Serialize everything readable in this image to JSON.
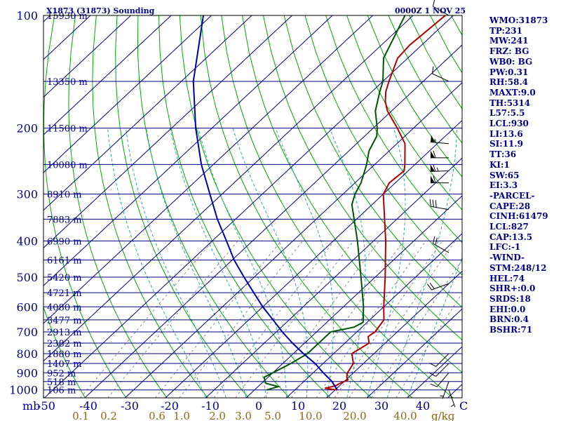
{
  "title": "X1873 (31873) Sounding",
  "datetime": "0000Z  1 NOV 25",
  "chart_data": {
    "type": "line",
    "title": "X1873 (31873) Sounding",
    "x_label_left": "mb",
    "x_unit_right": "C",
    "mixing_ratio_unit": "g/kg",
    "pressure_ticks": [
      100,
      200,
      300,
      400,
      500,
      600,
      700,
      800,
      900,
      1000
    ],
    "temperature_ticks": [
      -50,
      -40,
      -30,
      -20,
      -10,
      0,
      10,
      20,
      30,
      40
    ],
    "mixing_ratio_labels": [
      "0.1",
      "0.2",
      "0.6",
      "1.0",
      "2.0",
      "3.0",
      "5.0",
      "10.0",
      "20.0",
      "40.0"
    ],
    "height_labels": [
      {
        "p": 100,
        "text": "15930 m"
      },
      {
        "p": 150,
        "text": "13350 m"
      },
      {
        "p": 200,
        "text": "11500 m"
      },
      {
        "p": 250,
        "text": "10080 m"
      },
      {
        "p": 300,
        "text": "8910 m"
      },
      {
        "p": 350,
        "text": "7883 m"
      },
      {
        "p": 400,
        "text": "6990 m"
      },
      {
        "p": 450,
        "text": "6161 m"
      },
      {
        "p": 500,
        "text": "5420 m"
      },
      {
        "p": 550,
        "text": "4721 m"
      },
      {
        "p": 600,
        "text": "4080 m"
      },
      {
        "p": 650,
        "text": "3477 m"
      },
      {
        "p": 700,
        "text": "2913 m"
      },
      {
        "p": 750,
        "text": "2382 m"
      },
      {
        "p": 800,
        "text": "1880 m"
      },
      {
        "p": 850,
        "text": "1407 m"
      },
      {
        "p": 900,
        "text": "952 m"
      },
      {
        "p": 950,
        "text": "518 m"
      },
      {
        "p": 1000,
        "text": "106 m"
      }
    ],
    "series": [
      {
        "color": "#b00000",
        "points": [
          [
            1000,
            20.5
          ],
          [
            990,
            17.0
          ],
          [
            975,
            19.0
          ],
          [
            960,
            19.5
          ],
          [
            950,
            20.0
          ],
          [
            940,
            20.5
          ],
          [
            925,
            19.5
          ],
          [
            900,
            18.5
          ],
          [
            850,
            17.5
          ],
          [
            800,
            14.5
          ],
          [
            750,
            16.0
          ],
          [
            720,
            14.0
          ],
          [
            700,
            14.5
          ],
          [
            650,
            13.5
          ],
          [
            600,
            10.0
          ],
          [
            500,
            2.5
          ],
          [
            400,
            -7.0
          ],
          [
            300,
            -20.0
          ],
          [
            280,
            -21.5
          ],
          [
            260,
            -21.0
          ],
          [
            250,
            -22.5
          ],
          [
            220,
            -28.0
          ],
          [
            200,
            -34.0
          ],
          [
            180,
            -41.0
          ],
          [
            170,
            -44.0
          ],
          [
            160,
            -46.5
          ],
          [
            150,
            -48.5
          ],
          [
            130,
            -52.5
          ],
          [
            120,
            -53.0
          ],
          [
            100,
            -52.0
          ]
        ]
      },
      {
        "color": "#005500",
        "points": [
          [
            1000,
            3.0
          ],
          [
            980,
            5.0
          ],
          [
            960,
            1.0
          ],
          [
            925,
            -1.0
          ],
          [
            900,
            0.0
          ],
          [
            850,
            2.0
          ],
          [
            800,
            3.5
          ],
          [
            700,
            3.5
          ],
          [
            680,
            8.0
          ],
          [
            660,
            9.0
          ],
          [
            600,
            5.0
          ],
          [
            500,
            -3.5
          ],
          [
            400,
            -14.0
          ],
          [
            320,
            -25.0
          ],
          [
            300,
            -27.0
          ],
          [
            280,
            -28.5
          ],
          [
            250,
            -32.0
          ],
          [
            230,
            -35.0
          ],
          [
            210,
            -37.0
          ],
          [
            200,
            -39.0
          ],
          [
            180,
            -44.0
          ],
          [
            160,
            -48.0
          ],
          [
            150,
            -50.0
          ],
          [
            130,
            -56.0
          ],
          [
            100,
            -62.0
          ]
        ]
      },
      {
        "color": "#0000aa",
        "points": [
          [
            1000,
            20.5
          ],
          [
            950,
            17.0
          ],
          [
            900,
            12.5
          ],
          [
            850,
            8.0
          ],
          [
            800,
            2.5
          ],
          [
            750,
            -3.0
          ],
          [
            700,
            -8.5
          ],
          [
            650,
            -14.0
          ],
          [
            600,
            -20.0
          ],
          [
            550,
            -26.0
          ],
          [
            500,
            -32.5
          ],
          [
            450,
            -39.5
          ],
          [
            400,
            -46.5
          ],
          [
            350,
            -54.5
          ],
          [
            300,
            -63.0
          ],
          [
            250,
            -73.0
          ],
          [
            200,
            -84.0
          ],
          [
            150,
            -97.0
          ],
          [
            100,
            -112.0
          ]
        ]
      }
    ],
    "wind_barbs": [
      {
        "p": 100,
        "dir": 300,
        "spd": 10
      },
      {
        "p": 150,
        "dir": 295,
        "spd": 10
      },
      {
        "p": 220,
        "dir": 275,
        "spd": 55
      },
      {
        "p": 240,
        "dir": 270,
        "spd": 60
      },
      {
        "p": 260,
        "dir": 268,
        "spd": 65
      },
      {
        "p": 280,
        "dir": 270,
        "spd": 60
      },
      {
        "p": 330,
        "dir": 280,
        "spd": 30
      },
      {
        "p": 430,
        "dir": 300,
        "spd": 20
      },
      {
        "p": 520,
        "dir": 250,
        "spd": 20
      },
      {
        "p": 800,
        "dir": 225,
        "spd": 10
      },
      {
        "p": 850,
        "dir": 225,
        "spd": 10
      },
      {
        "p": 900,
        "dir": 220,
        "spd": 10
      },
      {
        "p": 950,
        "dir": 200,
        "spd": 5
      },
      {
        "p": 1000,
        "dir": 160,
        "spd": 5
      }
    ]
  },
  "indices": [
    "WMO:31873",
    "TP:231",
    "MW:241",
    "FRZ: BG",
    "WB0: BG",
    "PW:0.31",
    "RH:58.4",
    "MAXT:9.0",
    "TH:5314",
    "L57:5.5",
    "LCL:930",
    "LI:13.6",
    "SI:11.9",
    "TT:36",
    "KI:1",
    "SW:65",
    "EI:3.3",
    "-PARCEL-",
    "CAPE:28",
    "CINH:61479",
    "LCL:827",
    "CAP:13.5",
    "LFC:-1",
    "-WIND-",
    "STM:248/12",
    "HEL:74",
    "SHR+:0.0",
    "SRDS:18",
    "EHI:0.0",
    "BRN:0.4",
    "BSHR:71"
  ]
}
